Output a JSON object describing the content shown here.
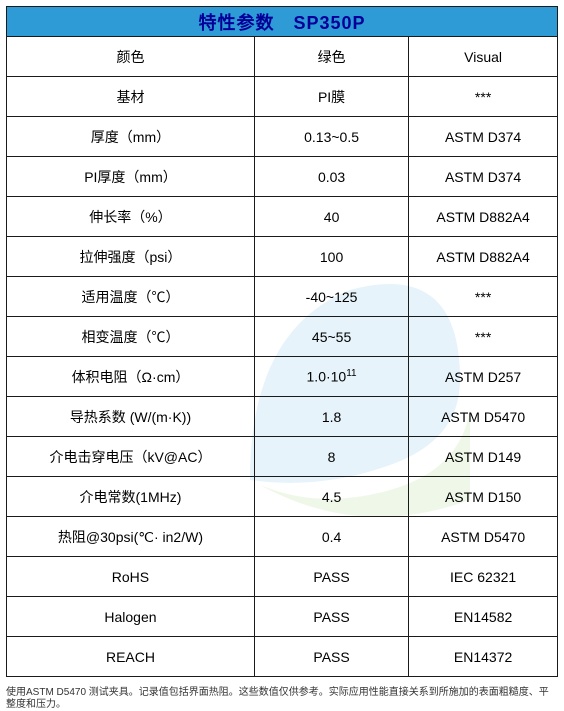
{
  "header": {
    "title": "特性参数　SP350P"
  },
  "colors": {
    "header_bg": "#2e9ad6",
    "header_text": "#000099",
    "border": "#1a1a1a",
    "watermark_blue": "#a8d5f0",
    "watermark_green": "#c8e8b0"
  },
  "columns": {
    "param_width_pct": 45,
    "value_width_pct": 28,
    "method_width_pct": 27
  },
  "rows": [
    {
      "param": "颜色",
      "value": "绿色",
      "method": "Visual"
    },
    {
      "param": "基材",
      "value": "PI膜",
      "method": "***"
    },
    {
      "param": "厚度（mm）",
      "value": "0.13~0.5",
      "method": "ASTM D374"
    },
    {
      "param": "PI厚度（mm）",
      "value": "0.03",
      "method": "ASTM D374"
    },
    {
      "param": "伸长率（%）",
      "value": "40",
      "method": "ASTM D882A4"
    },
    {
      "param": "拉伸强度（psi）",
      "value": "100",
      "method": "ASTM D882A4"
    },
    {
      "param": "适用温度（℃）",
      "value": "-40~125",
      "method": "***"
    },
    {
      "param": "相变温度（℃）",
      "value": "45~55",
      "method": "***"
    },
    {
      "param": "体积电阻（Ω·cm）",
      "value_html": "1.0·10<span class=\"sup\">11</span>",
      "method": "ASTM D257"
    },
    {
      "param": "导热系数 (W/(m·K))",
      "value": "1.8",
      "method": "ASTM D5470"
    },
    {
      "param": "介电击穿电压（kV@AC）",
      "value": "8",
      "method": "ASTM D149"
    },
    {
      "param": "介电常数(1MHz)",
      "value": "4.5",
      "method": "ASTM D150"
    },
    {
      "param": "热阻@30psi(℃· in2/W)",
      "value": "0.4",
      "method": "ASTM D5470"
    },
    {
      "param": "RoHS",
      "value": "PASS",
      "method": "IEC 62321"
    },
    {
      "param": "Halogen",
      "value": "PASS",
      "method": "EN14582"
    },
    {
      "param": "REACH",
      "value": "PASS",
      "method": "EN14372"
    }
  ],
  "footnote": "使用ASTM D5470 测试夹具。记录值包括界面热阻。这些数值仅供参考。实际应用性能直接关系到所施加的表面粗糙度、平整度和压力。"
}
